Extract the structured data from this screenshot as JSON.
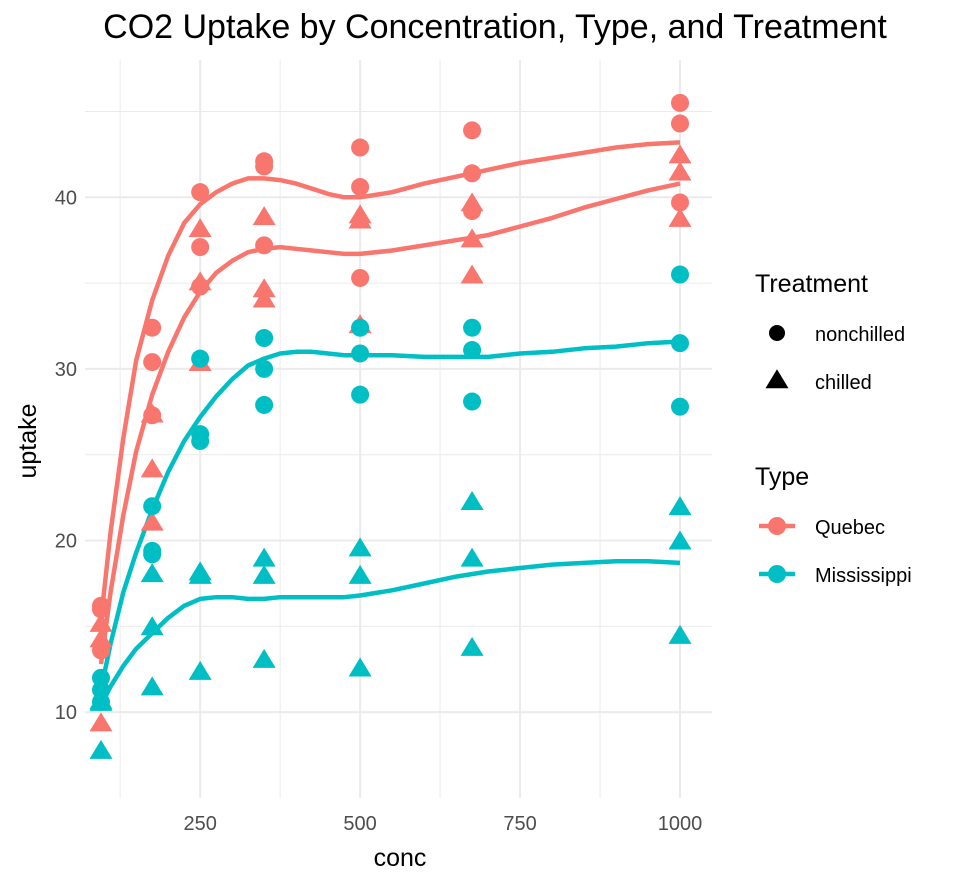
{
  "colors": {
    "quebec": "#F8766D",
    "mississippi": "#00BFC4",
    "grid": "#ebebeb",
    "tick_text": "#4d4d4d"
  },
  "chart_data": {
    "type": "scatter",
    "title": "CO2 Uptake by Concentration, Type, and Treatment",
    "xlabel": "conc",
    "ylabel": "uptake",
    "xlim": [
      70,
      1050
    ],
    "ylim": [
      5,
      48
    ],
    "x_ticks": [
      250,
      500,
      750,
      1000
    ],
    "y_ticks": [
      10,
      20,
      30,
      40
    ],
    "grid": true,
    "legend_placement": "right",
    "legends": [
      {
        "title": "Treatment",
        "entries": [
          {
            "label": "nonchilled",
            "shape": "circle"
          },
          {
            "label": "chilled",
            "shape": "triangle"
          }
        ]
      },
      {
        "title": "Type",
        "entries": [
          {
            "label": "Quebec",
            "color": "#F8766D"
          },
          {
            "label": "Mississippi",
            "color": "#00BFC4"
          }
        ]
      }
    ],
    "points": [
      {
        "type": "Quebec",
        "treatment": "nonchilled",
        "x": 95,
        "y": 16.0
      },
      {
        "type": "Quebec",
        "treatment": "nonchilled",
        "x": 175,
        "y": 30.4
      },
      {
        "type": "Quebec",
        "treatment": "nonchilled",
        "x": 250,
        "y": 34.8
      },
      {
        "type": "Quebec",
        "treatment": "nonchilled",
        "x": 350,
        "y": 37.2
      },
      {
        "type": "Quebec",
        "treatment": "nonchilled",
        "x": 500,
        "y": 35.3
      },
      {
        "type": "Quebec",
        "treatment": "nonchilled",
        "x": 675,
        "y": 39.2
      },
      {
        "type": "Quebec",
        "treatment": "nonchilled",
        "x": 1000,
        "y": 39.7
      },
      {
        "type": "Quebec",
        "treatment": "nonchilled",
        "x": 95,
        "y": 13.6
      },
      {
        "type": "Quebec",
        "treatment": "nonchilled",
        "x": 175,
        "y": 27.3
      },
      {
        "type": "Quebec",
        "treatment": "nonchilled",
        "x": 250,
        "y": 37.1
      },
      {
        "type": "Quebec",
        "treatment": "nonchilled",
        "x": 350,
        "y": 41.8
      },
      {
        "type": "Quebec",
        "treatment": "nonchilled",
        "x": 500,
        "y": 40.6
      },
      {
        "type": "Quebec",
        "treatment": "nonchilled",
        "x": 675,
        "y": 41.4
      },
      {
        "type": "Quebec",
        "treatment": "nonchilled",
        "x": 1000,
        "y": 44.3
      },
      {
        "type": "Quebec",
        "treatment": "nonchilled",
        "x": 95,
        "y": 16.2
      },
      {
        "type": "Quebec",
        "treatment": "nonchilled",
        "x": 175,
        "y": 32.4
      },
      {
        "type": "Quebec",
        "treatment": "nonchilled",
        "x": 250,
        "y": 40.3
      },
      {
        "type": "Quebec",
        "treatment": "nonchilled",
        "x": 350,
        "y": 42.1
      },
      {
        "type": "Quebec",
        "treatment": "nonchilled",
        "x": 500,
        "y": 42.9
      },
      {
        "type": "Quebec",
        "treatment": "nonchilled",
        "x": 675,
        "y": 43.9
      },
      {
        "type": "Quebec",
        "treatment": "nonchilled",
        "x": 1000,
        "y": 45.5
      },
      {
        "type": "Quebec",
        "treatment": "chilled",
        "x": 95,
        "y": 14.2
      },
      {
        "type": "Quebec",
        "treatment": "chilled",
        "x": 175,
        "y": 24.1
      },
      {
        "type": "Quebec",
        "treatment": "chilled",
        "x": 250,
        "y": 30.3
      },
      {
        "type": "Quebec",
        "treatment": "chilled",
        "x": 350,
        "y": 34.6
      },
      {
        "type": "Quebec",
        "treatment": "chilled",
        "x": 500,
        "y": 32.5
      },
      {
        "type": "Quebec",
        "treatment": "chilled",
        "x": 675,
        "y": 35.4
      },
      {
        "type": "Quebec",
        "treatment": "chilled",
        "x": 1000,
        "y": 38.7
      },
      {
        "type": "Quebec",
        "treatment": "chilled",
        "x": 95,
        "y": 9.3
      },
      {
        "type": "Quebec",
        "treatment": "chilled",
        "x": 175,
        "y": 27.3
      },
      {
        "type": "Quebec",
        "treatment": "chilled",
        "x": 250,
        "y": 35.0
      },
      {
        "type": "Quebec",
        "treatment": "chilled",
        "x": 350,
        "y": 38.8
      },
      {
        "type": "Quebec",
        "treatment": "chilled",
        "x": 500,
        "y": 38.6
      },
      {
        "type": "Quebec",
        "treatment": "chilled",
        "x": 675,
        "y": 37.5
      },
      {
        "type": "Quebec",
        "treatment": "chilled",
        "x": 1000,
        "y": 42.4
      },
      {
        "type": "Quebec",
        "treatment": "chilled",
        "x": 95,
        "y": 15.1
      },
      {
        "type": "Quebec",
        "treatment": "chilled",
        "x": 175,
        "y": 21.0
      },
      {
        "type": "Quebec",
        "treatment": "chilled",
        "x": 250,
        "y": 38.1
      },
      {
        "type": "Quebec",
        "treatment": "chilled",
        "x": 350,
        "y": 34.0
      },
      {
        "type": "Quebec",
        "treatment": "chilled",
        "x": 500,
        "y": 38.9
      },
      {
        "type": "Quebec",
        "treatment": "chilled",
        "x": 675,
        "y": 39.6
      },
      {
        "type": "Quebec",
        "treatment": "chilled",
        "x": 1000,
        "y": 41.4
      },
      {
        "type": "Mississippi",
        "treatment": "nonchilled",
        "x": 95,
        "y": 10.6
      },
      {
        "type": "Mississippi",
        "treatment": "nonchilled",
        "x": 175,
        "y": 19.2
      },
      {
        "type": "Mississippi",
        "treatment": "nonchilled",
        "x": 250,
        "y": 26.2
      },
      {
        "type": "Mississippi",
        "treatment": "nonchilled",
        "x": 350,
        "y": 30.0
      },
      {
        "type": "Mississippi",
        "treatment": "nonchilled",
        "x": 500,
        "y": 30.9
      },
      {
        "type": "Mississippi",
        "treatment": "nonchilled",
        "x": 675,
        "y": 32.4
      },
      {
        "type": "Mississippi",
        "treatment": "nonchilled",
        "x": 1000,
        "y": 35.5
      },
      {
        "type": "Mississippi",
        "treatment": "nonchilled",
        "x": 95,
        "y": 12.0
      },
      {
        "type": "Mississippi",
        "treatment": "nonchilled",
        "x": 175,
        "y": 22.0
      },
      {
        "type": "Mississippi",
        "treatment": "nonchilled",
        "x": 250,
        "y": 30.6
      },
      {
        "type": "Mississippi",
        "treatment": "nonchilled",
        "x": 350,
        "y": 31.8
      },
      {
        "type": "Mississippi",
        "treatment": "nonchilled",
        "x": 500,
        "y": 32.4
      },
      {
        "type": "Mississippi",
        "treatment": "nonchilled",
        "x": 675,
        "y": 31.1
      },
      {
        "type": "Mississippi",
        "treatment": "nonchilled",
        "x": 1000,
        "y": 31.5
      },
      {
        "type": "Mississippi",
        "treatment": "nonchilled",
        "x": 95,
        "y": 11.3
      },
      {
        "type": "Mississippi",
        "treatment": "nonchilled",
        "x": 175,
        "y": 19.4
      },
      {
        "type": "Mississippi",
        "treatment": "nonchilled",
        "x": 250,
        "y": 25.8
      },
      {
        "type": "Mississippi",
        "treatment": "nonchilled",
        "x": 350,
        "y": 27.9
      },
      {
        "type": "Mississippi",
        "treatment": "nonchilled",
        "x": 500,
        "y": 28.5
      },
      {
        "type": "Mississippi",
        "treatment": "nonchilled",
        "x": 675,
        "y": 28.1
      },
      {
        "type": "Mississippi",
        "treatment": "nonchilled",
        "x": 1000,
        "y": 27.8
      },
      {
        "type": "Mississippi",
        "treatment": "chilled",
        "x": 95,
        "y": 10.5
      },
      {
        "type": "Mississippi",
        "treatment": "chilled",
        "x": 175,
        "y": 14.9
      },
      {
        "type": "Mississippi",
        "treatment": "chilled",
        "x": 250,
        "y": 18.1
      },
      {
        "type": "Mississippi",
        "treatment": "chilled",
        "x": 350,
        "y": 18.9
      },
      {
        "type": "Mississippi",
        "treatment": "chilled",
        "x": 500,
        "y": 19.5
      },
      {
        "type": "Mississippi",
        "treatment": "chilled",
        "x": 675,
        "y": 22.2
      },
      {
        "type": "Mississippi",
        "treatment": "chilled",
        "x": 1000,
        "y": 21.9
      },
      {
        "type": "Mississippi",
        "treatment": "chilled",
        "x": 95,
        "y": 7.7
      },
      {
        "type": "Mississippi",
        "treatment": "chilled",
        "x": 175,
        "y": 11.4
      },
      {
        "type": "Mississippi",
        "treatment": "chilled",
        "x": 250,
        "y": 12.3
      },
      {
        "type": "Mississippi",
        "treatment": "chilled",
        "x": 350,
        "y": 13.0
      },
      {
        "type": "Mississippi",
        "treatment": "chilled",
        "x": 500,
        "y": 12.5
      },
      {
        "type": "Mississippi",
        "treatment": "chilled",
        "x": 675,
        "y": 13.7
      },
      {
        "type": "Mississippi",
        "treatment": "chilled",
        "x": 1000,
        "y": 14.4
      },
      {
        "type": "Mississippi",
        "treatment": "chilled",
        "x": 95,
        "y": 10.6
      },
      {
        "type": "Mississippi",
        "treatment": "chilled",
        "x": 175,
        "y": 18.0
      },
      {
        "type": "Mississippi",
        "treatment": "chilled",
        "x": 250,
        "y": 17.9
      },
      {
        "type": "Mississippi",
        "treatment": "chilled",
        "x": 350,
        "y": 17.9
      },
      {
        "type": "Mississippi",
        "treatment": "chilled",
        "x": 500,
        "y": 17.9
      },
      {
        "type": "Mississippi",
        "treatment": "chilled",
        "x": 675,
        "y": 18.9
      },
      {
        "type": "Mississippi",
        "treatment": "chilled",
        "x": 1000,
        "y": 19.9
      }
    ],
    "smooth_lines": [
      {
        "type": "Quebec",
        "treatment": "nonchilled",
        "x": [
          95,
          110,
          130,
          150,
          175,
          200,
          225,
          250,
          275,
          300,
          325,
          350,
          375,
          400,
          425,
          450,
          475,
          500,
          550,
          600,
          650,
          700,
          750,
          800,
          850,
          900,
          950,
          1000
        ],
        "y": [
          15.4,
          20.5,
          26.0,
          30.5,
          34.0,
          36.6,
          38.5,
          39.6,
          40.3,
          40.8,
          41.1,
          41.1,
          41.0,
          40.8,
          40.5,
          40.2,
          40.0,
          40.0,
          40.3,
          40.8,
          41.2,
          41.6,
          42.0,
          42.3,
          42.6,
          42.9,
          43.1,
          43.2
        ]
      },
      {
        "type": "Quebec",
        "treatment": "chilled",
        "x": [
          95,
          110,
          130,
          150,
          175,
          200,
          225,
          250,
          275,
          300,
          325,
          350,
          375,
          400,
          425,
          450,
          475,
          500,
          550,
          600,
          650,
          700,
          750,
          800,
          850,
          900,
          950,
          1000
        ],
        "y": [
          12.8,
          17.0,
          21.5,
          25.2,
          28.5,
          31.0,
          33.0,
          34.5,
          35.6,
          36.3,
          36.8,
          37.0,
          37.1,
          37.0,
          36.9,
          36.8,
          36.7,
          36.7,
          36.9,
          37.2,
          37.5,
          37.8,
          38.3,
          38.8,
          39.4,
          39.9,
          40.4,
          40.8
        ]
      },
      {
        "type": "Mississippi",
        "treatment": "nonchilled",
        "x": [
          95,
          110,
          130,
          150,
          175,
          200,
          225,
          250,
          275,
          300,
          325,
          350,
          375,
          400,
          425,
          450,
          475,
          500,
          550,
          600,
          650,
          700,
          750,
          800,
          850,
          900,
          950,
          1000
        ],
        "y": [
          11.3,
          14.0,
          17.0,
          19.3,
          21.8,
          24.0,
          25.8,
          27.2,
          28.4,
          29.4,
          30.2,
          30.6,
          30.9,
          31.0,
          31.0,
          30.9,
          30.8,
          30.8,
          30.8,
          30.7,
          30.7,
          30.7,
          30.9,
          31.0,
          31.2,
          31.3,
          31.5,
          31.6
        ]
      },
      {
        "type": "Mississippi",
        "treatment": "chilled",
        "x": [
          95,
          110,
          130,
          150,
          175,
          200,
          225,
          250,
          275,
          300,
          325,
          350,
          375,
          400,
          425,
          450,
          475,
          500,
          550,
          600,
          650,
          700,
          750,
          800,
          850,
          900,
          950,
          1000
        ],
        "y": [
          10.4,
          11.5,
          12.7,
          13.7,
          14.6,
          15.5,
          16.2,
          16.6,
          16.7,
          16.7,
          16.6,
          16.6,
          16.7,
          16.7,
          16.7,
          16.7,
          16.7,
          16.8,
          17.1,
          17.5,
          17.9,
          18.2,
          18.4,
          18.6,
          18.7,
          18.8,
          18.8,
          18.7
        ]
      }
    ]
  }
}
